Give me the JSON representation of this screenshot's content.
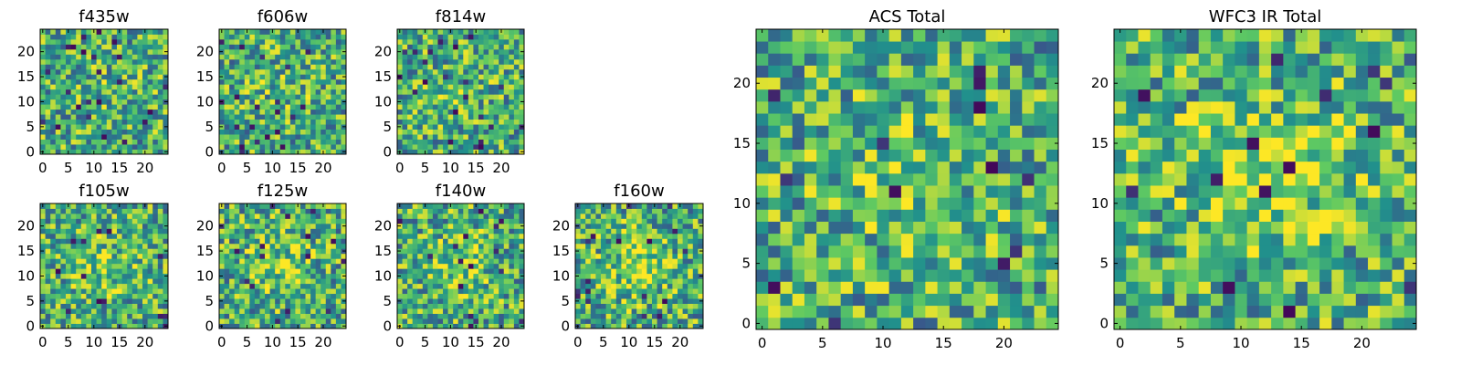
{
  "figure": {
    "colormap": "viridis",
    "colormap_stops": [
      "#440154",
      "#3b528b",
      "#21918c",
      "#5ec962",
      "#fde725"
    ],
    "frame_color": "#000000",
    "background": "#ffffff"
  },
  "chart_data": [
    {
      "type": "heatmap",
      "title": "f435w",
      "grid_size": 25,
      "xlim": [
        -0.5,
        24.5
      ],
      "ylim": [
        -0.5,
        24.5
      ],
      "xticks": [
        0,
        5,
        10,
        15,
        20
      ],
      "yticks": [
        0,
        5,
        10,
        15,
        20
      ],
      "grid": false,
      "central_peak": 0.05,
      "seed": 11
    },
    {
      "type": "heatmap",
      "title": "f606w",
      "grid_size": 25,
      "xlim": [
        -0.5,
        24.5
      ],
      "ylim": [
        -0.5,
        24.5
      ],
      "xticks": [
        0,
        5,
        10,
        15,
        20
      ],
      "yticks": [
        0,
        5,
        10,
        15,
        20
      ],
      "grid": false,
      "central_peak": 0.06,
      "seed": 23
    },
    {
      "type": "heatmap",
      "title": "f814w",
      "grid_size": 25,
      "xlim": [
        -0.5,
        24.5
      ],
      "ylim": [
        -0.5,
        24.5
      ],
      "xticks": [
        0,
        5,
        10,
        15,
        20
      ],
      "yticks": [
        0,
        5,
        10,
        15,
        20
      ],
      "grid": false,
      "central_peak": 0.08,
      "seed": 37
    },
    {
      "type": "heatmap",
      "title": "f105w",
      "grid_size": 25,
      "xlim": [
        -0.5,
        24.5
      ],
      "ylim": [
        -0.5,
        24.5
      ],
      "xticks": [
        0,
        5,
        10,
        15,
        20
      ],
      "yticks": [
        0,
        5,
        10,
        15,
        20
      ],
      "grid": false,
      "central_peak": 0.15,
      "seed": 41
    },
    {
      "type": "heatmap",
      "title": "f125w",
      "grid_size": 25,
      "xlim": [
        -0.5,
        24.5
      ],
      "ylim": [
        -0.5,
        24.5
      ],
      "xticks": [
        0,
        5,
        10,
        15,
        20
      ],
      "yticks": [
        0,
        5,
        10,
        15,
        20
      ],
      "grid": false,
      "central_peak": 0.18,
      "seed": 53
    },
    {
      "type": "heatmap",
      "title": "f140w",
      "grid_size": 25,
      "xlim": [
        -0.5,
        24.5
      ],
      "ylim": [
        -0.5,
        24.5
      ],
      "xticks": [
        0,
        5,
        10,
        15,
        20
      ],
      "yticks": [
        0,
        5,
        10,
        15,
        20
      ],
      "grid": false,
      "central_peak": 0.2,
      "seed": 67
    },
    {
      "type": "heatmap",
      "title": "f160w",
      "grid_size": 25,
      "xlim": [
        -0.5,
        24.5
      ],
      "ylim": [
        -0.5,
        24.5
      ],
      "xticks": [
        0,
        5,
        10,
        15,
        20
      ],
      "yticks": [
        0,
        5,
        10,
        15,
        20
      ],
      "grid": false,
      "central_peak": 0.25,
      "seed": 79
    },
    {
      "type": "heatmap",
      "title": "ACS Total",
      "grid_size": 25,
      "xlim": [
        -0.5,
        24.5
      ],
      "ylim": [
        -0.5,
        24.5
      ],
      "xticks": [
        0,
        5,
        10,
        15,
        20
      ],
      "yticks": [
        0,
        5,
        10,
        15,
        20
      ],
      "grid": false,
      "central_peak": 0.15,
      "seed": 97
    },
    {
      "type": "heatmap",
      "title": "WFC3 IR Total",
      "grid_size": 25,
      "xlim": [
        -0.5,
        24.5
      ],
      "ylim": [
        -0.5,
        24.5
      ],
      "xticks": [
        0,
        5,
        10,
        15,
        20
      ],
      "yticks": [
        0,
        5,
        10,
        15,
        20
      ],
      "grid": false,
      "central_peak": 0.3,
      "seed": 113
    }
  ]
}
